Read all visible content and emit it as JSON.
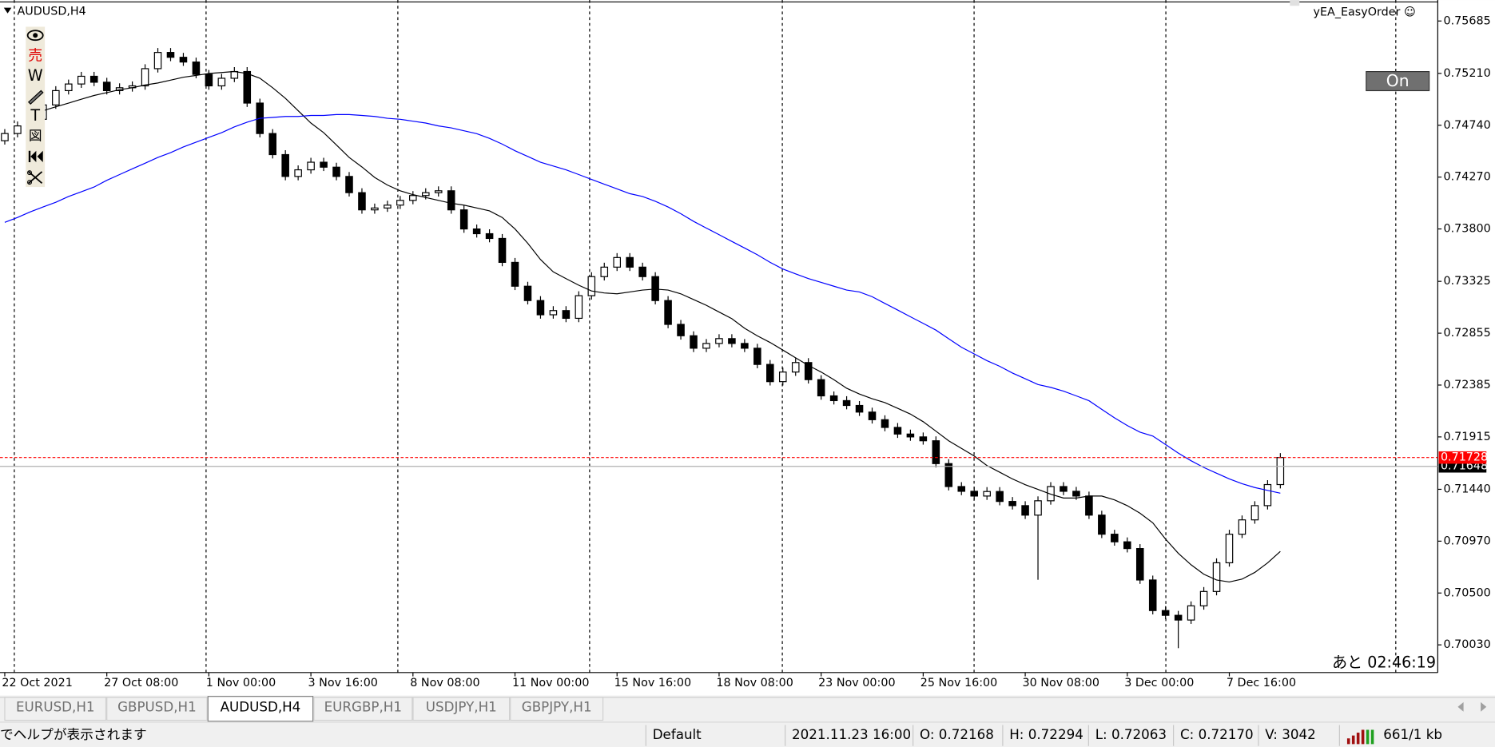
{
  "chart_data": {
    "type": "candlestick",
    "symbol": "AUDUSD,H4",
    "categories": [
      "22 Oct 2021",
      null,
      null,
      null,
      null,
      null,
      null,
      null,
      "27 Oct 08:00",
      null,
      null,
      null,
      null,
      null,
      null,
      null,
      "1 Nov 00:00",
      null,
      null,
      null,
      null,
      null,
      null,
      null,
      "3 Nov 16:00",
      null,
      null,
      null,
      null,
      null,
      null,
      null,
      "8 Nov 08:00",
      null,
      null,
      null,
      null,
      null,
      null,
      null,
      "11 Nov 00:00",
      null,
      null,
      null,
      null,
      null,
      null,
      null,
      "15 Nov 16:00",
      null,
      null,
      null,
      null,
      null,
      null,
      null,
      "18 Nov 08:00",
      null,
      null,
      null,
      null,
      null,
      null,
      null,
      "23 Nov 00:00",
      null,
      null,
      null,
      null,
      null,
      null,
      null,
      "25 Nov 16:00",
      null,
      null,
      null,
      null,
      null,
      null,
      null,
      "30 Nov 08:00",
      null,
      null,
      null,
      null,
      null,
      null,
      null,
      "3 Dec 00:00",
      null,
      null,
      null,
      null,
      null,
      null,
      null,
      "7 Dec 16:00",
      null,
      null,
      null,
      null
    ],
    "open": [
      0.746,
      0.74665,
      0.74734,
      0.74794,
      0.74924,
      0.75054,
      0.75114,
      0.75184,
      0.7513,
      0.75054,
      0.7508,
      0.75097,
      0.75253,
      0.754,
      0.75356,
      0.75313,
      0.75201,
      0.75097,
      0.75166,
      0.75227,
      0.74941,
      0.74665,
      0.74474,
      0.74276,
      0.74336,
      0.74405,
      0.7436,
      0.74276,
      0.74129,
      0.73973,
      0.7399,
      0.74016,
      0.74059,
      0.74103,
      0.74129,
      0.74146,
      0.73973,
      0.738,
      0.73757,
      0.73714,
      0.73497,
      0.73281,
      0.73151,
      0.73022,
      0.7306,
      0.7299,
      0.73195,
      0.73368,
      0.73454,
      0.73541,
      0.73454,
      0.73368,
      0.73151,
      0.72935,
      0.72832,
      0.72719,
      0.72762,
      0.72806,
      0.72762,
      0.72719,
      0.72572,
      0.72416,
      0.72503,
      0.72589,
      0.72434,
      0.72287,
      0.72244,
      0.722,
      0.7214,
      0.72071,
      0.72001,
      0.71941,
      0.71915,
      0.7188,
      0.71673,
      0.71465,
      0.71422,
      0.71379,
      0.7142,
      0.7133,
      0.71292,
      0.71206,
      0.71336,
      0.71465,
      0.71422,
      0.71379,
      0.71206,
      0.71033,
      0.70964,
      0.70903,
      0.70618,
      0.70341,
      0.70298,
      0.70255,
      0.70384,
      0.70514,
      0.70774,
      0.71033,
      0.71163,
      0.71292,
      0.71483
    ],
    "high": [
      0.74705,
      0.74774,
      0.74834,
      0.74964,
      0.75094,
      0.75154,
      0.75224,
      0.75224,
      0.7517,
      0.7512,
      0.75137,
      0.75293,
      0.7544,
      0.7544,
      0.75396,
      0.75353,
      0.75241,
      0.75206,
      0.75267,
      0.75267,
      0.74981,
      0.74705,
      0.74514,
      0.74376,
      0.74445,
      0.74445,
      0.744,
      0.74316,
      0.74169,
      0.7403,
      0.74056,
      0.74099,
      0.74143,
      0.74169,
      0.74186,
      0.74186,
      0.74013,
      0.7384,
      0.73797,
      0.73754,
      0.73537,
      0.73321,
      0.73191,
      0.731,
      0.731,
      0.73235,
      0.73408,
      0.73494,
      0.73581,
      0.73581,
      0.73494,
      0.73408,
      0.73191,
      0.72975,
      0.72872,
      0.72802,
      0.72846,
      0.72846,
      0.72802,
      0.72759,
      0.72612,
      0.72543,
      0.72629,
      0.72629,
      0.72474,
      0.72327,
      0.72284,
      0.7224,
      0.7218,
      0.72111,
      0.72041,
      0.71981,
      0.71955,
      0.7192,
      0.71713,
      0.71505,
      0.71462,
      0.7146,
      0.7146,
      0.7137,
      0.71332,
      0.71376,
      0.71505,
      0.71505,
      0.71462,
      0.71419,
      0.71246,
      0.71073,
      0.71004,
      0.70943,
      0.70658,
      0.70381,
      0.70338,
      0.70424,
      0.70554,
      0.70814,
      0.71073,
      0.71203,
      0.71332,
      0.71523,
      0.71768
    ],
    "low": [
      0.74565,
      0.7463,
      0.74699,
      0.74759,
      0.74889,
      0.75019,
      0.75079,
      0.75095,
      0.75019,
      0.75019,
      0.75045,
      0.75062,
      0.75218,
      0.75321,
      0.75278,
      0.75166,
      0.75062,
      0.75062,
      0.75131,
      0.74906,
      0.7463,
      0.74439,
      0.74241,
      0.74241,
      0.74301,
      0.74325,
      0.74241,
      0.74094,
      0.73938,
      0.73938,
      0.73955,
      0.73981,
      0.74024,
      0.74068,
      0.74094,
      0.73938,
      0.73765,
      0.73722,
      0.73679,
      0.73462,
      0.73246,
      0.73116,
      0.72987,
      0.72987,
      0.72955,
      0.72955,
      0.7316,
      0.73333,
      0.73419,
      0.73419,
      0.73333,
      0.73116,
      0.729,
      0.72797,
      0.72684,
      0.72684,
      0.72727,
      0.72727,
      0.72684,
      0.72537,
      0.72381,
      0.72381,
      0.72468,
      0.72399,
      0.72252,
      0.72209,
      0.72165,
      0.72105,
      0.72036,
      0.71966,
      0.71906,
      0.7188,
      0.71845,
      0.71638,
      0.7143,
      0.71387,
      0.71344,
      0.71344,
      0.71295,
      0.71257,
      0.71171,
      0.7062,
      0.71301,
      0.71387,
      0.71344,
      0.71171,
      0.70998,
      0.70929,
      0.70868,
      0.70583,
      0.70306,
      0.70263,
      0.7,
      0.7022,
      0.70349,
      0.70479,
      0.70739,
      0.70998,
      0.71128,
      0.71257,
      0.71448
    ],
    "close": [
      0.74665,
      0.74734,
      0.74794,
      0.74924,
      0.75054,
      0.75114,
      0.75184,
      0.7513,
      0.75054,
      0.7508,
      0.75097,
      0.75253,
      0.754,
      0.75356,
      0.75313,
      0.75201,
      0.75097,
      0.75166,
      0.75227,
      0.74941,
      0.74665,
      0.74474,
      0.74276,
      0.74336,
      0.74405,
      0.7436,
      0.74276,
      0.74129,
      0.73973,
      0.7399,
      0.74016,
      0.74059,
      0.74103,
      0.74129,
      0.74146,
      0.73973,
      0.738,
      0.73757,
      0.73714,
      0.73497,
      0.73281,
      0.73151,
      0.73022,
      0.7306,
      0.7299,
      0.73195,
      0.73368,
      0.73454,
      0.73541,
      0.73454,
      0.73368,
      0.73151,
      0.72935,
      0.72832,
      0.72719,
      0.72762,
      0.72806,
      0.72762,
      0.72719,
      0.72572,
      0.72416,
      0.72503,
      0.72589,
      0.72434,
      0.72287,
      0.72244,
      0.722,
      0.7214,
      0.72071,
      0.72001,
      0.71941,
      0.71915,
      0.7188,
      0.71673,
      0.71465,
      0.71422,
      0.71379,
      0.7142,
      0.7133,
      0.71292,
      0.71206,
      0.71336,
      0.71465,
      0.71422,
      0.71379,
      0.71206,
      0.71033,
      0.70964,
      0.70903,
      0.70618,
      0.70341,
      0.70298,
      0.70255,
      0.70384,
      0.70514,
      0.70774,
      0.71033,
      0.71163,
      0.71292,
      0.71483,
      0.71728
    ],
    "up_color": "#ffffff",
    "down_color": "#000000",
    "lines": [
      {
        "color": "#000000",
        "values": [
          null,
          null,
          null,
          0.74872,
          0.74907,
          0.74941,
          0.74976,
          0.7501,
          0.75036,
          0.75062,
          0.7508,
          0.75105,
          0.75123,
          0.75149,
          0.75175,
          0.75192,
          0.75209,
          0.75218,
          0.75227,
          0.75209,
          0.75166,
          0.7508,
          0.74984,
          0.74872,
          0.7476,
          0.74673,
          0.74561,
          0.74448,
          0.74362,
          0.74267,
          0.74198,
          0.74146,
          0.74111,
          0.74085,
          0.74059,
          0.74033,
          0.74016,
          0.7399,
          0.73964,
          0.73904,
          0.738,
          0.7367,
          0.73523,
          0.73411,
          0.7335,
          0.7329,
          0.73238,
          0.7322,
          0.73212,
          0.73229,
          0.73246,
          0.73255,
          0.73246,
          0.73212,
          0.7316,
          0.73108,
          0.73047,
          0.72987,
          0.729,
          0.72831,
          0.72771,
          0.72702,
          0.72632,
          0.72563,
          0.72503,
          0.72434,
          0.72356,
          0.72304,
          0.72261,
          0.72226,
          0.72174,
          0.72122,
          0.72053,
          0.71967,
          0.7188,
          0.71811,
          0.71742,
          0.71655,
          0.71595,
          0.71534,
          0.71482,
          0.71439,
          0.71396,
          0.71361,
          0.71361,
          0.71379,
          0.71379,
          0.71344,
          0.71292,
          0.71223,
          0.71136,
          0.70989,
          0.7086,
          0.70756,
          0.7067,
          0.70618,
          0.706,
          0.70626,
          0.70687,
          0.70773,
          0.70877
        ]
      },
      {
        "color": "#0000ff",
        "values": [
          0.7386,
          0.73904,
          0.73955,
          0.73999,
          0.74042,
          0.74094,
          0.74137,
          0.7418,
          0.74241,
          0.74293,
          0.74345,
          0.74396,
          0.74448,
          0.74492,
          0.74543,
          0.74587,
          0.7463,
          0.74673,
          0.74725,
          0.74768,
          0.74803,
          0.74811,
          0.7482,
          0.7482,
          0.74829,
          0.74829,
          0.74837,
          0.74837,
          0.74829,
          0.7482,
          0.74803,
          0.74794,
          0.74777,
          0.7476,
          0.74734,
          0.74716,
          0.7469,
          0.74664,
          0.74621,
          0.74569,
          0.74509,
          0.74457,
          0.74405,
          0.7437,
          0.74336,
          0.74293,
          0.74249,
          0.74206,
          0.74163,
          0.7412,
          0.74094,
          0.74051,
          0.73999,
          0.73938,
          0.73869,
          0.73808,
          0.73748,
          0.73687,
          0.73627,
          0.73566,
          0.73497,
          0.73437,
          0.73393,
          0.7335,
          0.73316,
          0.73281,
          0.73246,
          0.73229,
          0.73186,
          0.73125,
          0.73065,
          0.73004,
          0.72944,
          0.72883,
          0.72805,
          0.72728,
          0.72667,
          0.72606,
          0.72555,
          0.72494,
          0.72442,
          0.7239,
          0.72364,
          0.7233,
          0.72287,
          0.72243,
          0.72165,
          0.72088,
          0.72018,
          0.71958,
          0.71923,
          0.71846,
          0.71768,
          0.71699,
          0.71638,
          0.71586,
          0.71534,
          0.71491,
          0.71456,
          0.7143,
          0.71405
        ]
      }
    ],
    "ylim": [
      0.69779,
      0.75875
    ],
    "yticks": [
      0.75685,
      {
        "value": 0.7521,
        "label": "0.75210"
      },
      {
        "value": 0.7474,
        "label": "0.74740"
      },
      {
        "value": 0.7427,
        "label": "0.74270"
      },
      {
        "value": 0.738,
        "label": "0.73800"
      },
      0.73325,
      0.72855,
      0.72385,
      0.71915,
      {
        "value": 0.7144,
        "label": "0.71440"
      },
      {
        "value": 0.7097,
        "label": "0.70970"
      },
      {
        "value": 0.705,
        "label": "0.70500"
      },
      {
        "value": 0.7003,
        "label": "0.70030"
      }
    ],
    "price_lines": [
      {
        "value": 0.71648,
        "color": "#000000"
      },
      {
        "value": 0.71728,
        "color": "#ff0000"
      }
    ]
  },
  "indicator": {
    "name": "yEA_EasyOrder ☺",
    "button": "On",
    "countdown": "あと 02:46:19"
  },
  "toolbar": [
    "売",
    "W",
    "T",
    "図"
  ],
  "tabs": [
    "EURUSD,H1",
    "GBPUSD,H1",
    "AUDUSD,H4",
    "EURGBP,H1",
    "USDJPY,H1",
    "GBPJPY,H1"
  ],
  "status_bar": {
    "help": "でヘルプが表示されます",
    "profile": "Default",
    "time": "2021.11.23 16:00",
    "open": "O: 0.72168",
    "high": "H: 0.72294",
    "low": "L: 0.72063",
    "close": "C: 0.72170",
    "volume": "V: 3042",
    "traffic": "661/1 kb"
  }
}
